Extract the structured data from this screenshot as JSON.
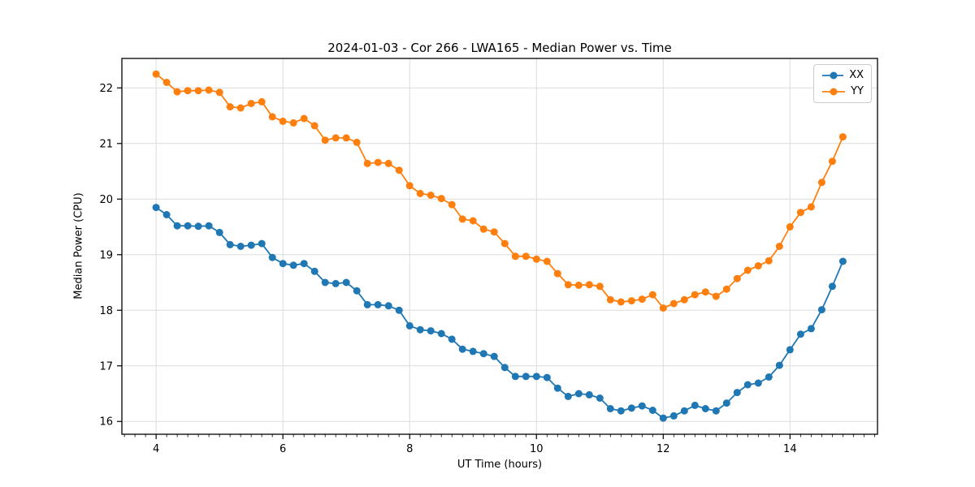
{
  "chart_data": {
    "type": "line",
    "title": "2024-01-03 - Cor 266 - LWA165 - Median Power vs. Time",
    "xlabel": "UT Time (hours)",
    "ylabel": "Median Power (CPU)",
    "xlim": [
      3.46,
      15.38
    ],
    "ylim": [
      15.77,
      22.53
    ],
    "xticks": [
      4,
      6,
      8,
      10,
      12,
      14
    ],
    "yticks": [
      16,
      17,
      18,
      19,
      20,
      21,
      22
    ],
    "minor_xtick_step": 0.16667,
    "grid": true,
    "legend": {
      "position": "upper right",
      "entries": [
        "XX",
        "YY"
      ]
    },
    "x_start": 4.0,
    "x_step": 0.16667,
    "sample_cadence": "10 minutes",
    "series": [
      {
        "name": "XX",
        "color": "#1f77b4",
        "values": [
          19.85,
          19.72,
          19.52,
          19.52,
          19.51,
          19.52,
          19.4,
          19.18,
          19.15,
          19.17,
          19.2,
          18.95,
          18.84,
          18.81,
          18.84,
          18.7,
          18.5,
          18.48,
          18.5,
          18.35,
          18.1,
          18.1,
          18.08,
          18.0,
          17.72,
          17.65,
          17.63,
          17.58,
          17.48,
          17.3,
          17.26,
          17.22,
          17.17,
          16.97,
          16.81,
          16.81,
          16.81,
          16.79,
          16.6,
          16.45,
          16.5,
          16.48,
          16.42,
          16.23,
          16.19,
          16.24,
          16.28,
          16.2,
          16.06,
          16.1,
          16.19,
          16.29,
          16.23,
          16.19,
          16.33,
          16.52,
          16.66,
          16.69,
          16.8,
          17.01,
          17.29,
          17.57,
          17.67,
          18.01,
          18.43,
          18.88
        ]
      },
      {
        "name": "YY",
        "color": "#ff7f0e",
        "values": [
          22.25,
          22.1,
          21.93,
          21.95,
          21.95,
          21.96,
          21.92,
          21.66,
          21.64,
          21.72,
          21.75,
          21.48,
          21.4,
          21.37,
          21.45,
          21.32,
          21.06,
          21.1,
          21.1,
          21.02,
          20.64,
          20.66,
          20.64,
          20.52,
          20.24,
          20.1,
          20.07,
          20.01,
          19.9,
          19.64,
          19.61,
          19.46,
          19.41,
          19.2,
          18.97,
          18.97,
          18.92,
          18.88,
          18.66,
          18.46,
          18.45,
          18.46,
          18.43,
          18.19,
          18.15,
          18.17,
          18.2,
          18.28,
          18.04,
          18.12,
          18.19,
          18.28,
          18.33,
          18.25,
          18.38,
          18.57,
          18.72,
          18.8,
          18.89,
          19.15,
          19.5,
          19.76,
          19.86,
          20.3,
          20.68,
          21.12
        ]
      }
    ]
  }
}
